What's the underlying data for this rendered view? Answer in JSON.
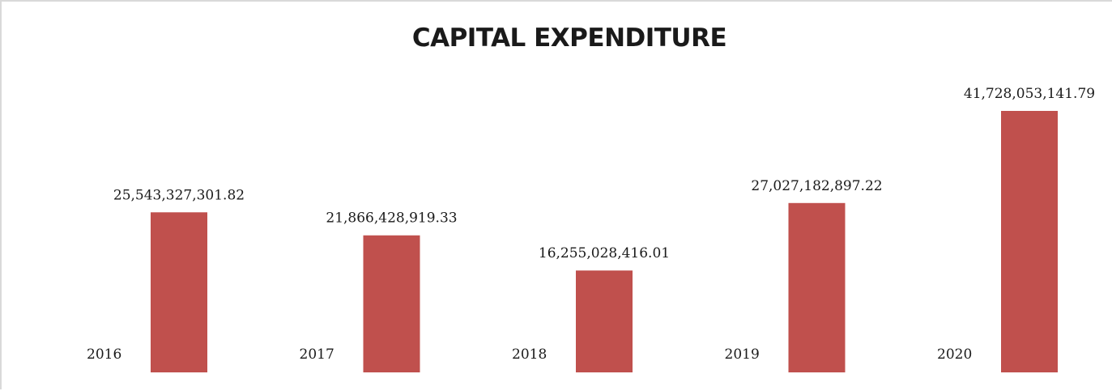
{
  "chart_data": {
    "type": "bar",
    "title": "CAPITAL EXPENDITURE",
    "categories": [
      "2016",
      "2017",
      "2018",
      "2019",
      "2020"
    ],
    "values": [
      25543327301.82,
      21866428919.33,
      16255028416.01,
      27027182897.22,
      41728053141.79
    ],
    "value_labels": [
      "25,543,327,301.82",
      "21,866,428,919.33",
      "16,255,028,416.01",
      "27,027,182,897.22",
      "41,728,053,141.79"
    ],
    "series_color": "#c0504d",
    "ylim": [
      0,
      42000000000
    ],
    "grid": false,
    "legend": "none"
  }
}
